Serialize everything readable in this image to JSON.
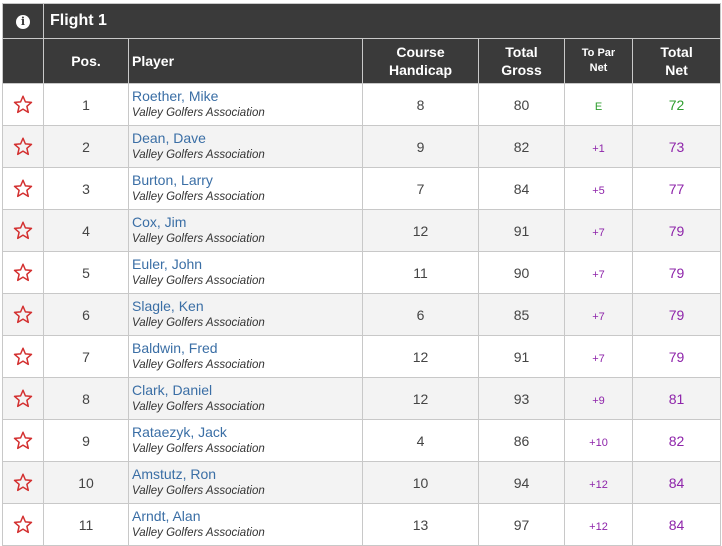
{
  "flight_title": "Flight 1",
  "headers": {
    "pos": "Pos.",
    "player": "Player",
    "course_line1": "Course",
    "course_line2": "Handicap",
    "gross_line1": "Total",
    "gross_line2": "Gross",
    "topar_line1": "To Par",
    "topar_line2": "Net",
    "net_line1": "Total",
    "net_line2": "Net"
  },
  "colors": {
    "header_bg": "#3a3a3a",
    "star": "#d32f2f",
    "player_link": "#3a6ea5",
    "net_purple": "#8e24aa",
    "net_green": "#2e9d2e"
  },
  "rows": [
    {
      "pos": "1",
      "name": "Roether, Mike",
      "club": "Valley Golfers Association",
      "handicap": "8",
      "gross": "80",
      "topar": "E",
      "net": "72"
    },
    {
      "pos": "2",
      "name": "Dean, Dave",
      "club": "Valley Golfers Association",
      "handicap": "9",
      "gross": "82",
      "topar": "+1",
      "net": "73"
    },
    {
      "pos": "3",
      "name": "Burton, Larry",
      "club": "Valley Golfers Association",
      "handicap": "7",
      "gross": "84",
      "topar": "+5",
      "net": "77"
    },
    {
      "pos": "4",
      "name": "Cox, Jim",
      "club": "Valley Golfers Association",
      "handicap": "12",
      "gross": "91",
      "topar": "+7",
      "net": "79"
    },
    {
      "pos": "5",
      "name": "Euler, John",
      "club": "Valley Golfers Association",
      "handicap": "11",
      "gross": "90",
      "topar": "+7",
      "net": "79"
    },
    {
      "pos": "6",
      "name": "Slagle, Ken",
      "club": "Valley Golfers Association",
      "handicap": "6",
      "gross": "85",
      "topar": "+7",
      "net": "79"
    },
    {
      "pos": "7",
      "name": "Baldwin, Fred",
      "club": "Valley Golfers Association",
      "handicap": "12",
      "gross": "91",
      "topar": "+7",
      "net": "79"
    },
    {
      "pos": "8",
      "name": "Clark, Daniel",
      "club": "Valley Golfers Association",
      "handicap": "12",
      "gross": "93",
      "topar": "+9",
      "net": "81"
    },
    {
      "pos": "9",
      "name": "Rataezyk, Jack",
      "club": "Valley Golfers Association",
      "handicap": "4",
      "gross": "86",
      "topar": "+10",
      "net": "82"
    },
    {
      "pos": "10",
      "name": "Amstutz, Ron",
      "club": "Valley Golfers Association",
      "handicap": "10",
      "gross": "94",
      "topar": "+12",
      "net": "84"
    },
    {
      "pos": "11",
      "name": "Arndt, Alan",
      "club": "Valley Golfers Association",
      "handicap": "13",
      "gross": "97",
      "topar": "+12",
      "net": "84"
    }
  ]
}
